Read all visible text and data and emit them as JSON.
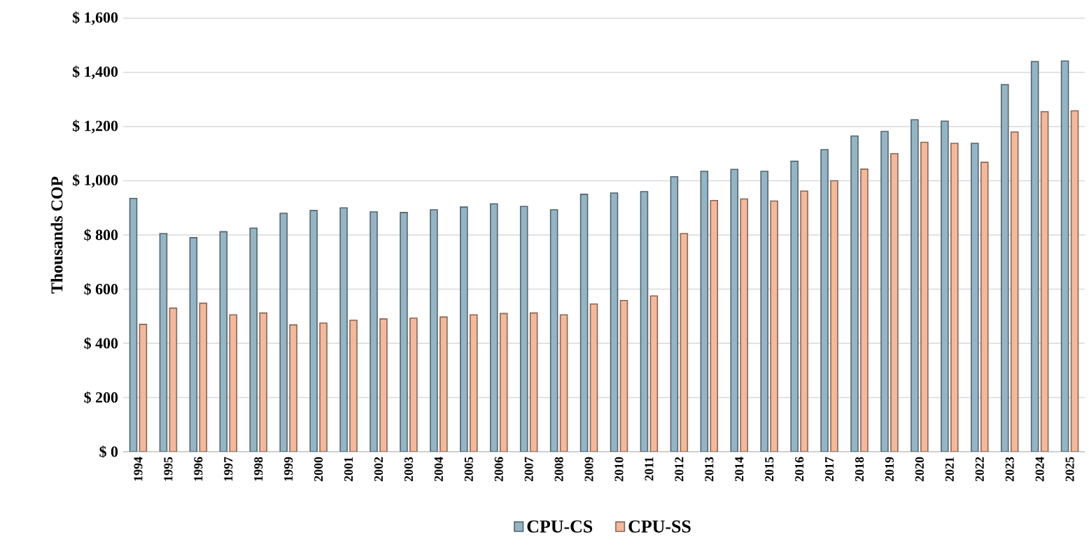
{
  "chart_data": {
    "type": "bar",
    "ylabel": "Thousands COP",
    "categories": [
      "1994",
      "1995",
      "1996",
      "1997",
      "1998",
      "1999",
      "2000",
      "2001",
      "2002",
      "2003",
      "2004",
      "2005",
      "2006",
      "2007",
      "2008",
      "2009",
      "2010",
      "2011",
      "2012",
      "2013",
      "2014",
      "2015",
      "2016",
      "2017",
      "2018",
      "2019",
      "2020",
      "2021",
      "2022",
      "2023",
      "2024",
      "2025"
    ],
    "series": [
      {
        "name": "CPU-CS",
        "color": "#95b5c5",
        "values": [
          935,
          805,
          790,
          812,
          825,
          880,
          890,
          900,
          885,
          883,
          893,
          903,
          915,
          905,
          893,
          950,
          955,
          960,
          1015,
          1035,
          1042,
          1035,
          1072,
          1115,
          1165,
          1182,
          1225,
          1220,
          1138,
          1355,
          1440,
          1442
        ]
      },
      {
        "name": "CPU-SS",
        "color": "#f3b99d",
        "values": [
          470,
          530,
          548,
          505,
          512,
          468,
          475,
          485,
          490,
          493,
          497,
          505,
          510,
          512,
          505,
          545,
          558,
          575,
          805,
          927,
          933,
          925,
          962,
          1000,
          1043,
          1100,
          1142,
          1138,
          1068,
          1180,
          1255,
          1258
        ]
      }
    ],
    "ylim": [
      0,
      1600
    ],
    "yticks": [
      {
        "value": 0,
        "label": "$ 0"
      },
      {
        "value": 200,
        "label": "$ 200"
      },
      {
        "value": 400,
        "label": "$ 400"
      },
      {
        "value": 600,
        "label": "$ 600"
      },
      {
        "value": 800,
        "label": "$ 800"
      },
      {
        "value": 1000,
        "label": "$ 1,000"
      },
      {
        "value": 1200,
        "label": "$ 1,200"
      },
      {
        "value": 1400,
        "label": "$ 1,400"
      },
      {
        "value": 1600,
        "label": "$ 1,600"
      }
    ],
    "grid": "y",
    "legend": "bottom"
  }
}
